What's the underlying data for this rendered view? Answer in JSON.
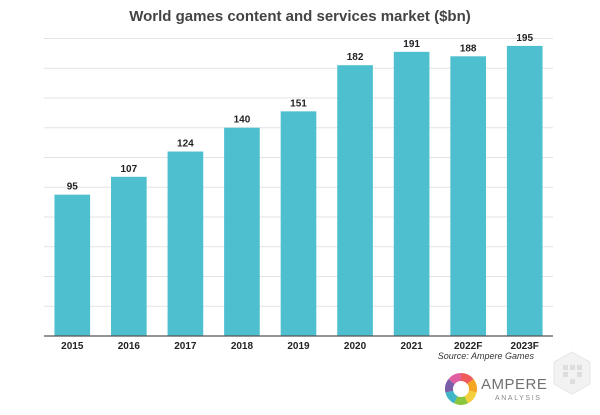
{
  "chart_data": {
    "type": "bar",
    "title": "World games content and services market ($bn)",
    "categories": [
      "2015",
      "2016",
      "2017",
      "2018",
      "2019",
      "2020",
      "2021",
      "2022F",
      "2023F"
    ],
    "values": [
      95,
      107,
      124,
      140,
      151,
      182,
      191,
      188,
      195
    ],
    "xlabel": "",
    "ylabel": "",
    "ylim": [
      0,
      205
    ],
    "grid": true,
    "bar_color": "#4dbfcf",
    "source": "Source: Ampere Games"
  },
  "logo": {
    "name": "AMPERE",
    "sub": "ANALYSIS",
    "colors": [
      "#f15a5a",
      "#f5a623",
      "#f4d03f",
      "#8cc63f",
      "#3fb6c8",
      "#7a5ea8",
      "#e05fa0"
    ]
  }
}
